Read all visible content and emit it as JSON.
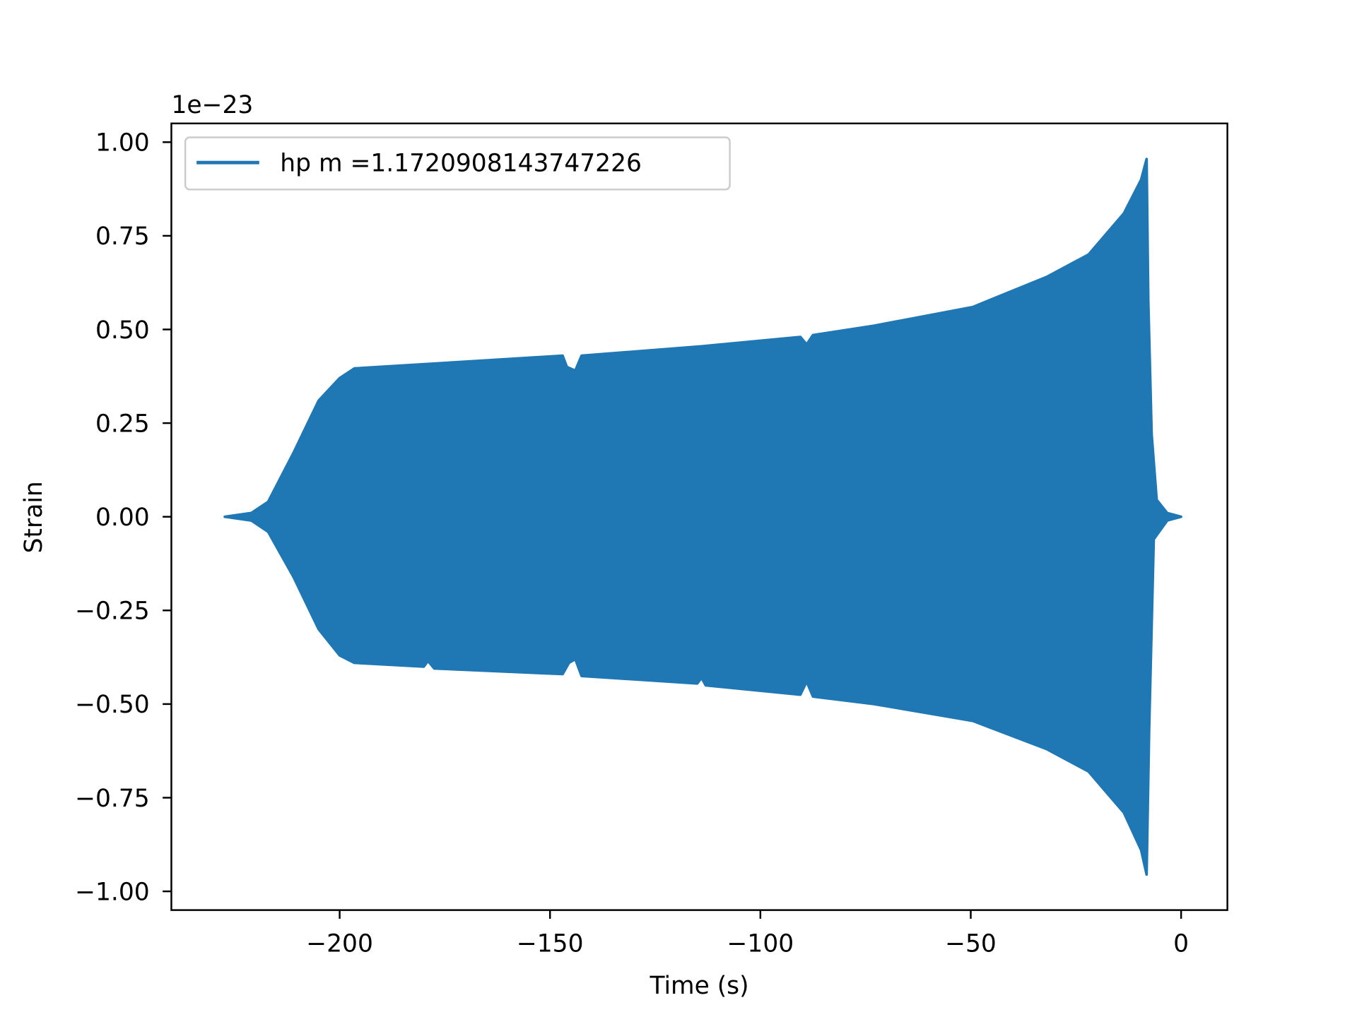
{
  "chart_data": {
    "type": "line",
    "title": "",
    "xlabel": "Time (s)",
    "ylabel": "Strain",
    "y_offset_label": "1e−23",
    "xlim": [
      -240,
      11
    ],
    "ylim": [
      -1.05,
      1.05
    ],
    "x_ticks": [
      -200,
      -150,
      -100,
      -50,
      0
    ],
    "x_tick_labels": [
      "−200",
      "−150",
      "−100",
      "−50",
      "0"
    ],
    "y_ticks": [
      -1.0,
      -0.75,
      -0.5,
      -0.25,
      0.0,
      0.25,
      0.5,
      0.75,
      1.0
    ],
    "y_tick_labels": [
      "−1.00",
      "−0.75",
      "−0.50",
      "−0.25",
      "0.00",
      "0.25",
      "0.50",
      "0.75",
      "1.00"
    ],
    "grid": false,
    "legend_placement": "top-left",
    "series": [
      {
        "name": "hp m =1.1720908143747226",
        "color": "#1f77b4",
        "note_units": "strain in units of 1e-23; rapid oscillation drawn as filled envelope",
        "upper_envelope": [
          [
            -227.3,
            0.0
          ],
          [
            -221,
            0.01
          ],
          [
            -217,
            0.04
          ],
          [
            -211,
            0.17
          ],
          [
            -205,
            0.31
          ],
          [
            -200,
            0.37
          ],
          [
            -196.5,
            0.396
          ],
          [
            -176,
            0.41
          ],
          [
            -147,
            0.43
          ],
          [
            -146,
            0.4
          ],
          [
            -144,
            0.39
          ],
          [
            -142.5,
            0.43
          ],
          [
            -114,
            0.455
          ],
          [
            -90.5,
            0.48
          ],
          [
            -89,
            0.46
          ],
          [
            -87.5,
            0.485
          ],
          [
            -73,
            0.51
          ],
          [
            -49.5,
            0.56
          ],
          [
            -32,
            0.64
          ],
          [
            -22,
            0.7
          ],
          [
            -13.6,
            0.81
          ],
          [
            -9.5,
            0.9
          ],
          [
            -8.2,
            0.955
          ],
          [
            -7.8,
            0.576
          ],
          [
            -7,
            0.22
          ],
          [
            -5.8,
            0.045
          ],
          [
            -3.3,
            0.01
          ],
          [
            0,
            0.0
          ]
        ],
        "lower_envelope": [
          [
            -227.3,
            0.0
          ],
          [
            -221,
            -0.01
          ],
          [
            -217,
            -0.04
          ],
          [
            -211,
            -0.16
          ],
          [
            -205,
            -0.3
          ],
          [
            -200,
            -0.37
          ],
          [
            -196.5,
            -0.39
          ],
          [
            -180,
            -0.4
          ],
          [
            -179,
            -0.385
          ],
          [
            -177.5,
            -0.405
          ],
          [
            -147,
            -0.42
          ],
          [
            -145.5,
            -0.39
          ],
          [
            -144,
            -0.38
          ],
          [
            -142.5,
            -0.425
          ],
          [
            -115,
            -0.445
          ],
          [
            -114,
            -0.43
          ],
          [
            -113,
            -0.45
          ],
          [
            -90.5,
            -0.475
          ],
          [
            -89,
            -0.44
          ],
          [
            -87.5,
            -0.48
          ],
          [
            -73,
            -0.5
          ],
          [
            -49.5,
            -0.545
          ],
          [
            -32,
            -0.62
          ],
          [
            -22,
            -0.68
          ],
          [
            -13.6,
            -0.79
          ],
          [
            -9.5,
            -0.89
          ],
          [
            -8.2,
            -0.955
          ],
          [
            -7.6,
            -0.57
          ],
          [
            -6.5,
            -0.06
          ],
          [
            -3.3,
            -0.01
          ],
          [
            0,
            0.0
          ]
        ]
      }
    ]
  }
}
